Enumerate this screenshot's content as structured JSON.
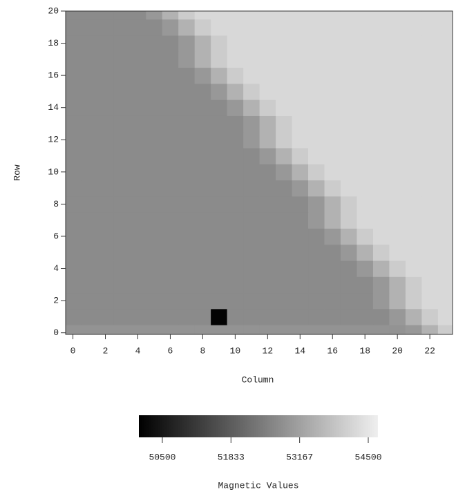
{
  "chart_data": {
    "type": "heatmap",
    "xlabel": "Column",
    "ylabel": "Row",
    "x": [
      0,
      1,
      2,
      3,
      4,
      5,
      6,
      7,
      8,
      9,
      10,
      11,
      12,
      13,
      14,
      15,
      16,
      17,
      18,
      19,
      20,
      21,
      22,
      23
    ],
    "y": [
      0,
      1,
      2,
      3,
      4,
      5,
      6,
      7,
      8,
      9,
      10,
      11,
      12,
      13,
      14,
      15,
      16,
      17,
      18,
      19,
      20
    ],
    "values": [
      [
        52900,
        52900,
        52900,
        52900,
        52900,
        52900,
        52900,
        52900,
        52900,
        52900,
        52900,
        52900,
        52900,
        52900,
        52900,
        52900,
        52900,
        52900,
        52900,
        52900,
        52900,
        53000,
        53500,
        54000
      ],
      [
        52750,
        52750,
        52750,
        52750,
        52750,
        52750,
        52750,
        52750,
        52750,
        50100,
        52750,
        52750,
        52750,
        52750,
        52750,
        52750,
        52750,
        52750,
        52750,
        52750,
        53000,
        53500,
        54000,
        54250
      ],
      [
        52750,
        52750,
        52750,
        52750,
        52750,
        52750,
        52750,
        52750,
        52750,
        52750,
        52750,
        52750,
        52750,
        52750,
        52750,
        52750,
        52750,
        52750,
        52750,
        53000,
        53500,
        54000,
        54250,
        54250
      ],
      [
        52750,
        52750,
        52750,
        52750,
        52750,
        52750,
        52750,
        52750,
        52750,
        52750,
        52750,
        52750,
        52750,
        52750,
        52750,
        52750,
        52750,
        52750,
        52750,
        53000,
        53500,
        54000,
        54250,
        54250
      ],
      [
        52750,
        52750,
        52750,
        52750,
        52750,
        52750,
        52750,
        52750,
        52750,
        52750,
        52750,
        52750,
        52750,
        52750,
        52750,
        52750,
        52750,
        52750,
        53000,
        53500,
        54000,
        54250,
        54250,
        54250
      ],
      [
        52750,
        52750,
        52750,
        52750,
        52750,
        52750,
        52750,
        52750,
        52750,
        52750,
        52750,
        52750,
        52750,
        52750,
        52750,
        52750,
        52750,
        53000,
        53500,
        54000,
        54250,
        54250,
        54250,
        54250
      ],
      [
        52750,
        52750,
        52750,
        52750,
        52750,
        52750,
        52750,
        52750,
        52750,
        52750,
        52750,
        52750,
        52750,
        52750,
        52750,
        52750,
        53000,
        53500,
        54000,
        54250,
        54250,
        54250,
        54250,
        54250
      ],
      [
        52750,
        52750,
        52750,
        52750,
        52750,
        52750,
        52750,
        52750,
        52750,
        52750,
        52750,
        52750,
        52750,
        52750,
        52750,
        53000,
        53500,
        54000,
        54250,
        54250,
        54250,
        54250,
        54250,
        54250
      ],
      [
        52750,
        52750,
        52750,
        52750,
        52750,
        52750,
        52750,
        52750,
        52750,
        52750,
        52750,
        52750,
        52750,
        52750,
        52750,
        53000,
        53500,
        54000,
        54250,
        54250,
        54250,
        54250,
        54250,
        54250
      ],
      [
        52750,
        52750,
        52750,
        52750,
        52750,
        52750,
        52750,
        52750,
        52750,
        52750,
        52750,
        52750,
        52750,
        52750,
        53000,
        53500,
        54000,
        54250,
        54250,
        54250,
        54250,
        54250,
        54250,
        54250
      ],
      [
        52750,
        52750,
        52750,
        52750,
        52750,
        52750,
        52750,
        52750,
        52750,
        52750,
        52750,
        52750,
        52750,
        53000,
        53500,
        54000,
        54250,
        54250,
        54250,
        54250,
        54250,
        54250,
        54250,
        54250
      ],
      [
        52750,
        52750,
        52750,
        52750,
        52750,
        52750,
        52750,
        52750,
        52750,
        52750,
        52750,
        52750,
        53000,
        53500,
        54000,
        54250,
        54250,
        54250,
        54250,
        54250,
        54250,
        54250,
        54250,
        54250
      ],
      [
        52750,
        52750,
        52750,
        52750,
        52750,
        52750,
        52750,
        52750,
        52750,
        52750,
        52750,
        53000,
        53500,
        54000,
        54250,
        54250,
        54250,
        54250,
        54250,
        54250,
        54250,
        54250,
        54250,
        54250
      ],
      [
        52750,
        52750,
        52750,
        52750,
        52750,
        52750,
        52750,
        52750,
        52750,
        52750,
        52750,
        53000,
        53500,
        54000,
        54250,
        54250,
        54250,
        54250,
        54250,
        54250,
        54250,
        54250,
        54250,
        54250
      ],
      [
        52750,
        52750,
        52750,
        52750,
        52750,
        52750,
        52750,
        52750,
        52750,
        52750,
        53000,
        53500,
        54000,
        54250,
        54250,
        54250,
        54250,
        54250,
        54250,
        54250,
        54250,
        54250,
        54250,
        54250
      ],
      [
        52750,
        52750,
        52750,
        52750,
        52750,
        52750,
        52750,
        52750,
        52750,
        53000,
        53500,
        54000,
        54250,
        54250,
        54250,
        54250,
        54250,
        54250,
        54250,
        54250,
        54250,
        54250,
        54250,
        54250
      ],
      [
        52750,
        52750,
        52750,
        52750,
        52750,
        52750,
        52750,
        52750,
        53000,
        53500,
        54000,
        54250,
        54250,
        54250,
        54250,
        54250,
        54250,
        54250,
        54250,
        54250,
        54250,
        54250,
        54250,
        54250
      ],
      [
        52750,
        52750,
        52750,
        52750,
        52750,
        52750,
        52750,
        53000,
        53500,
        54000,
        54250,
        54250,
        54250,
        54250,
        54250,
        54250,
        54250,
        54250,
        54250,
        54250,
        54250,
        54250,
        54250,
        54250
      ],
      [
        52750,
        52750,
        52750,
        52750,
        52750,
        52750,
        52750,
        53000,
        53500,
        54000,
        54250,
        54250,
        54250,
        54250,
        54250,
        54250,
        54250,
        54250,
        54250,
        54250,
        54250,
        54250,
        54250,
        54250
      ],
      [
        52750,
        52750,
        52750,
        52750,
        52750,
        52750,
        53000,
        53500,
        54000,
        54250,
        54250,
        54250,
        54250,
        54250,
        54250,
        54250,
        54250,
        54250,
        54250,
        54250,
        54250,
        54250,
        54250,
        54250
      ],
      [
        52750,
        52750,
        52750,
        52750,
        52750,
        53000,
        53500,
        54000,
        54250,
        54250,
        54250,
        54250,
        54250,
        54250,
        54250,
        54250,
        54250,
        54250,
        54250,
        54250,
        54250,
        54250,
        54250,
        54250
      ]
    ],
    "xlim": [
      -0.45,
      23.4
    ],
    "ylim": [
      -0.1,
      20
    ],
    "xticks": [
      0,
      2,
      4,
      6,
      8,
      10,
      12,
      14,
      16,
      18,
      20,
      22
    ],
    "yticks": [
      0,
      2,
      4,
      6,
      8,
      10,
      12,
      14,
      16,
      18,
      20
    ],
    "colors": [
      "#000000",
      "#efefef"
    ],
    "colorbar": {
      "label": "Magnetic Values",
      "clim": [
        50044,
        54688
      ],
      "ticks": [
        50500,
        51833,
        53167,
        54500
      ]
    }
  }
}
